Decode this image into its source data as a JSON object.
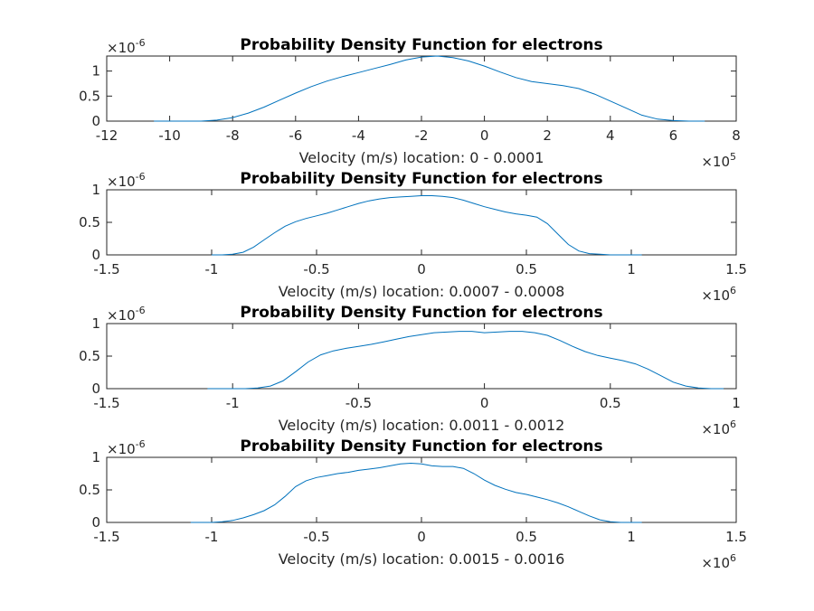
{
  "chart_data": [
    {
      "type": "line",
      "title": "Probability Density Function for electrons",
      "xlabel": "Velocity (m/s) location: 0 - 0.0001",
      "x_exponent": "5",
      "y_exponent": "-6",
      "xlim": [
        -12,
        8
      ],
      "ylim": [
        0,
        1.3
      ],
      "xticks": [
        -12,
        -10,
        -8,
        -6,
        -4,
        -2,
        0,
        2,
        4,
        6,
        8
      ],
      "xticklabels": [
        "-12",
        "-10",
        "-8",
        "-6",
        "-4",
        "-2",
        "0",
        "2",
        "4",
        "6",
        "8"
      ],
      "yticks": [
        0,
        0.5,
        1
      ],
      "yticklabels": [
        "0",
        "0.5",
        "1"
      ],
      "color": "#0072bd",
      "series": [
        {
          "x": [
            -10.5,
            -9.5,
            -9.0,
            -8.5,
            -8.0,
            -7.5,
            -7.0,
            -6.5,
            -6.0,
            -5.5,
            -5.0,
            -4.5,
            -4.0,
            -3.5,
            -3.0,
            -2.5,
            -2.0,
            -1.5,
            -1.0,
            -0.5,
            0.0,
            0.5,
            1.0,
            1.5,
            2.0,
            2.5,
            3.0,
            3.5,
            4.0,
            4.5,
            5.0,
            5.5,
            6.0,
            6.5,
            7.0
          ],
          "y": [
            0.0,
            0.0,
            0.0,
            0.02,
            0.07,
            0.16,
            0.28,
            0.42,
            0.56,
            0.69,
            0.8,
            0.89,
            0.97,
            1.05,
            1.13,
            1.22,
            1.28,
            1.3,
            1.27,
            1.2,
            1.1,
            0.98,
            0.87,
            0.79,
            0.75,
            0.71,
            0.65,
            0.54,
            0.4,
            0.26,
            0.12,
            0.04,
            0.01,
            0.0,
            0.0
          ]
        }
      ]
    },
    {
      "type": "line",
      "title": "Probability Density Function for electrons",
      "xlabel": "Velocity (m/s) location: 0.0007 - 0.0008",
      "x_exponent": "6",
      "y_exponent": "-6",
      "xlim": [
        -1.5,
        1.5
      ],
      "ylim": [
        0,
        1.0
      ],
      "xticks": [
        -1.5,
        -1,
        -0.5,
        0,
        0.5,
        1,
        1.5
      ],
      "xticklabels": [
        "-1.5",
        "-1",
        "-0.5",
        "0",
        "0.5",
        "1",
        "1.5"
      ],
      "yticks": [
        0,
        0.5,
        1
      ],
      "yticklabels": [
        "0",
        "0.5",
        "1"
      ],
      "color": "#0072bd",
      "series": [
        {
          "x": [
            -1.0,
            -0.95,
            -0.9,
            -0.85,
            -0.8,
            -0.75,
            -0.7,
            -0.65,
            -0.6,
            -0.55,
            -0.5,
            -0.45,
            -0.4,
            -0.35,
            -0.3,
            -0.25,
            -0.2,
            -0.15,
            -0.1,
            -0.05,
            0.0,
            0.05,
            0.1,
            0.15,
            0.2,
            0.25,
            0.3,
            0.35,
            0.4,
            0.45,
            0.5,
            0.55,
            0.6,
            0.65,
            0.7,
            0.75,
            0.8,
            0.85,
            0.9,
            0.95,
            1.0,
            1.05
          ],
          "y": [
            0.0,
            0.0,
            0.01,
            0.04,
            0.12,
            0.23,
            0.34,
            0.44,
            0.51,
            0.56,
            0.6,
            0.64,
            0.69,
            0.74,
            0.79,
            0.83,
            0.86,
            0.88,
            0.89,
            0.9,
            0.91,
            0.91,
            0.9,
            0.88,
            0.84,
            0.79,
            0.74,
            0.7,
            0.66,
            0.63,
            0.61,
            0.58,
            0.48,
            0.32,
            0.16,
            0.06,
            0.02,
            0.01,
            0.0,
            0.0,
            0.0,
            0.0
          ]
        }
      ]
    },
    {
      "type": "line",
      "title": "Probability Density Function for electrons",
      "xlabel": "Velocity (m/s) location: 0.0011 - 0.0012",
      "x_exponent": "6",
      "y_exponent": "-6",
      "xlim": [
        -1.5,
        1
      ],
      "ylim": [
        0,
        1.0
      ],
      "xticks": [
        -1.5,
        -1,
        -0.5,
        0,
        0.5,
        1
      ],
      "xticklabels": [
        "-1.5",
        "-1",
        "-0.5",
        "0",
        "0.5",
        "1"
      ],
      "yticks": [
        0,
        0.5,
        1
      ],
      "yticklabels": [
        "0",
        "0.5",
        "1"
      ],
      "color": "#0072bd",
      "series": [
        {
          "x": [
            -1.1,
            -1.0,
            -0.95,
            -0.9,
            -0.85,
            -0.8,
            -0.75,
            -0.7,
            -0.65,
            -0.6,
            -0.55,
            -0.5,
            -0.45,
            -0.4,
            -0.35,
            -0.3,
            -0.25,
            -0.2,
            -0.15,
            -0.1,
            -0.05,
            0.0,
            0.05,
            0.1,
            0.15,
            0.2,
            0.25,
            0.3,
            0.35,
            0.4,
            0.45,
            0.5,
            0.55,
            0.6,
            0.65,
            0.7,
            0.75,
            0.8,
            0.85,
            0.9,
            0.95
          ],
          "y": [
            0.0,
            0.0,
            0.0,
            0.01,
            0.04,
            0.12,
            0.26,
            0.41,
            0.52,
            0.58,
            0.62,
            0.65,
            0.68,
            0.72,
            0.76,
            0.8,
            0.83,
            0.86,
            0.87,
            0.88,
            0.88,
            0.86,
            0.87,
            0.88,
            0.88,
            0.86,
            0.82,
            0.74,
            0.65,
            0.57,
            0.51,
            0.47,
            0.43,
            0.38,
            0.3,
            0.2,
            0.1,
            0.04,
            0.01,
            0.0,
            0.0
          ]
        }
      ]
    },
    {
      "type": "line",
      "title": "Probability Density Function for electrons",
      "xlabel": "Velocity (m/s) location: 0.0015 - 0.0016",
      "x_exponent": "6",
      "y_exponent": "-6",
      "xlim": [
        -1.5,
        1.5
      ],
      "ylim": [
        0,
        1.0
      ],
      "xticks": [
        -1.5,
        -1,
        -0.5,
        0,
        0.5,
        1,
        1.5
      ],
      "xticklabels": [
        "-1.5",
        "-1",
        "-0.5",
        "0",
        "0.5",
        "1",
        "1.5"
      ],
      "yticks": [
        0,
        0.5,
        1
      ],
      "yticklabels": [
        "0",
        "0.5",
        "1"
      ],
      "color": "#0072bd",
      "series": [
        {
          "x": [
            -1.1,
            -1.0,
            -0.95,
            -0.9,
            -0.85,
            -0.8,
            -0.75,
            -0.7,
            -0.65,
            -0.6,
            -0.55,
            -0.5,
            -0.45,
            -0.4,
            -0.35,
            -0.3,
            -0.25,
            -0.2,
            -0.15,
            -0.1,
            -0.05,
            0.0,
            0.05,
            0.1,
            0.15,
            0.2,
            0.25,
            0.3,
            0.35,
            0.4,
            0.45,
            0.5,
            0.55,
            0.6,
            0.65,
            0.7,
            0.75,
            0.8,
            0.85,
            0.9,
            0.95,
            1.0,
            1.05
          ],
          "y": [
            0.0,
            0.0,
            0.01,
            0.03,
            0.07,
            0.12,
            0.18,
            0.27,
            0.4,
            0.55,
            0.64,
            0.69,
            0.72,
            0.75,
            0.77,
            0.8,
            0.82,
            0.84,
            0.87,
            0.9,
            0.91,
            0.9,
            0.87,
            0.86,
            0.86,
            0.83,
            0.75,
            0.65,
            0.57,
            0.51,
            0.46,
            0.43,
            0.39,
            0.35,
            0.3,
            0.24,
            0.17,
            0.1,
            0.04,
            0.01,
            0.0,
            0.0,
            0.0
          ]
        }
      ]
    }
  ]
}
